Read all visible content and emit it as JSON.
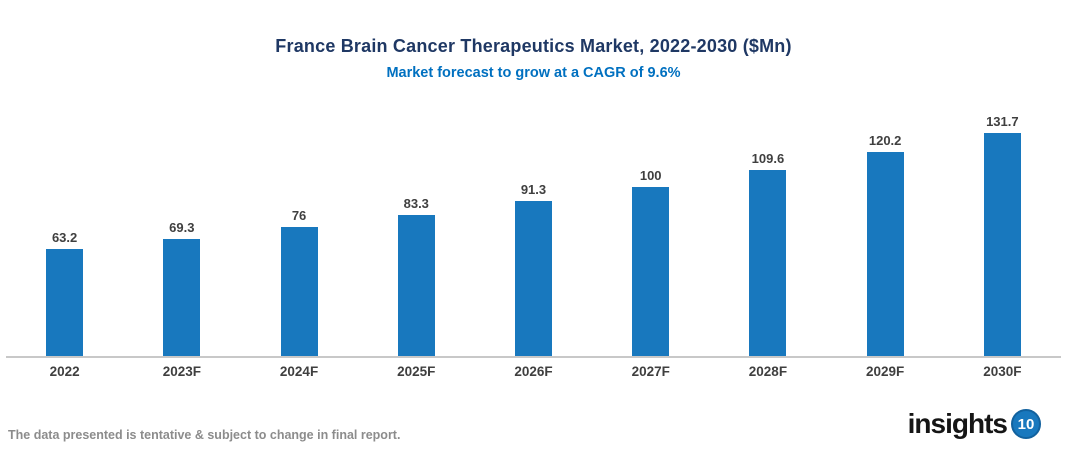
{
  "header": {
    "title": "France Brain Cancer Therapeutics Market, 2022-2030 ($Mn)",
    "subtitle": "Market forecast to grow at a CAGR of 9.6%"
  },
  "chart_data": {
    "type": "bar",
    "title": "France Brain Cancer Therapeutics Market, 2022-2030 ($Mn)",
    "subtitle": "Market forecast to grow at a CAGR of 9.6%",
    "categories": [
      "2022",
      "2023F",
      "2024F",
      "2025F",
      "2026F",
      "2027F",
      "2028F",
      "2029F",
      "2030F"
    ],
    "values": [
      63.2,
      69.3,
      76,
      83.3,
      91.3,
      100,
      109.6,
      120.2,
      131.7
    ],
    "value_labels": [
      "63.2",
      "69.3",
      "76",
      "83.3",
      "91.3",
      "100",
      "109.6",
      "120.2",
      "131.7"
    ],
    "xlabel": "",
    "ylabel": "",
    "ylim": [
      0,
      140
    ],
    "grid": false,
    "legend_position": "none",
    "bar_color": "#1878BE"
  },
  "footer": {
    "disclaimer": "The data presented is tentative & subject to change in final report.",
    "logo_text": "insights",
    "logo_badge": "10"
  },
  "colors": {
    "title": "#1F3864",
    "subtitle": "#0070C0",
    "bar": "#1878BE",
    "value_label": "#3F3F3F",
    "category_label": "#3F3F3F",
    "axis_line": "#C8C8C8",
    "disclaimer": "#8C8C8C",
    "logo_badge_bg": "#1878BE"
  }
}
